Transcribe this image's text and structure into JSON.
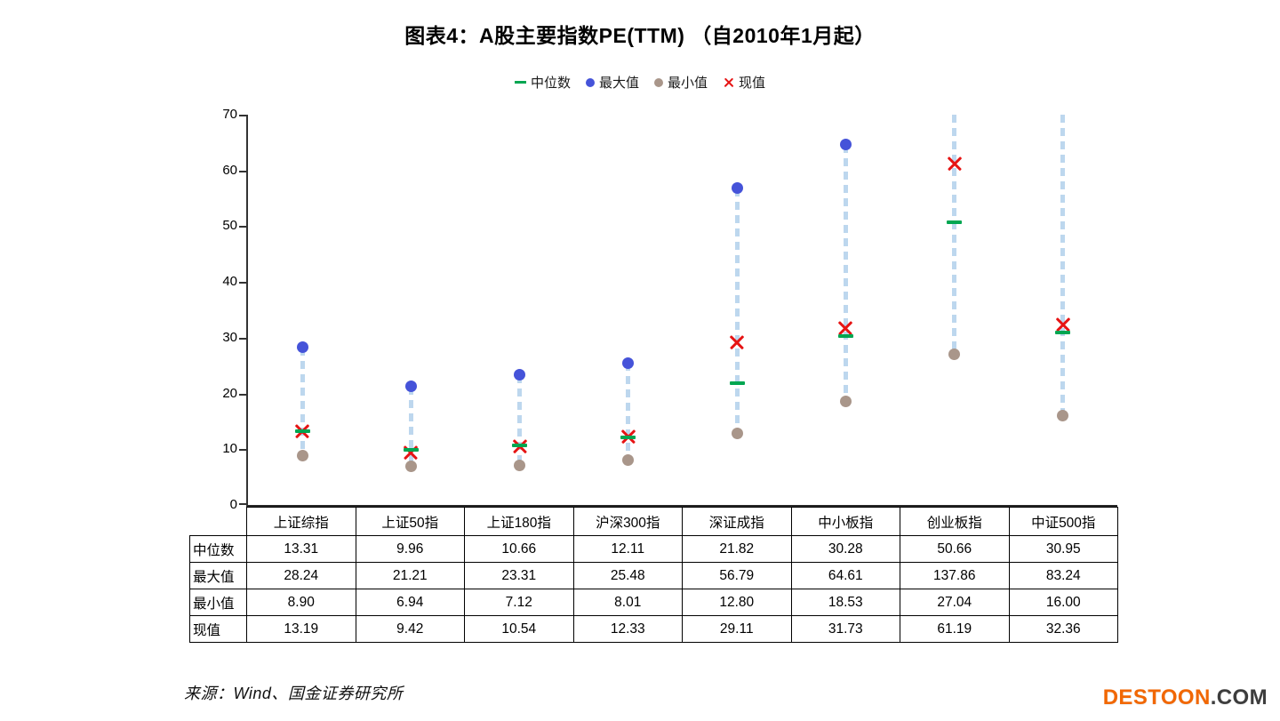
{
  "title": "图表4：A股主要指数PE(TTM) （自2010年1月起）",
  "legend": [
    {
      "role": "median",
      "label": "中位数",
      "marker": "dash",
      "color": "#00A651"
    },
    {
      "role": "max",
      "label": "最大值",
      "marker": "dot",
      "color": "#4553D9"
    },
    {
      "role": "min",
      "label": "最小值",
      "marker": "dot",
      "color": "#A9968A"
    },
    {
      "role": "current",
      "label": "现值",
      "marker": "x",
      "color": "#E61414"
    }
  ],
  "chart_data": {
    "type": "scatter",
    "subtype": "high-low-range",
    "title": "图表4：A股主要指数PE(TTM) （自2010年1月起）",
    "categories": [
      "上证综指",
      "上证50指",
      "上证180指",
      "沪深300指",
      "深证成指",
      "中小板指",
      "创业板指",
      "中证500指"
    ],
    "series": [
      {
        "name": "中位数",
        "role": "median",
        "marker": "dash",
        "values": [
          13.31,
          9.96,
          10.66,
          12.11,
          21.82,
          30.28,
          50.66,
          30.95
        ]
      },
      {
        "name": "最大值",
        "role": "max",
        "marker": "dot",
        "values": [
          28.24,
          21.21,
          23.31,
          25.48,
          56.79,
          64.61,
          137.86,
          83.24
        ]
      },
      {
        "name": "最小值",
        "role": "min",
        "marker": "dot",
        "values": [
          8.9,
          6.94,
          7.12,
          8.01,
          12.8,
          18.53,
          27.04,
          16.0
        ]
      },
      {
        "name": "现值",
        "role": "current",
        "marker": "x",
        "values": [
          13.19,
          9.42,
          10.54,
          12.33,
          29.11,
          31.73,
          61.19,
          32.36
        ]
      }
    ],
    "ylim": [
      0,
      70
    ],
    "yticks": [
      0,
      10,
      20,
      30,
      40,
      50,
      60,
      70
    ],
    "grid": false,
    "legend_position": "top",
    "range_line_color": "#BDD7EE",
    "axis_color": "#333333",
    "note": "最大值超出70的（创业板指137.86、中证500指83.24）虚线被裁切于图顶，不显示蓝色圆点"
  },
  "table": {
    "corner_label": "",
    "columns": [
      "上证综指",
      "上证50指",
      "上证180指",
      "沪深300指",
      "深证成指",
      "中小板指",
      "创业板指",
      "中证500指"
    ],
    "rows": [
      {
        "label": "中位数",
        "values": [
          "13.31",
          "9.96",
          "10.66",
          "12.11",
          "21.82",
          "30.28",
          "50.66",
          "30.95"
        ]
      },
      {
        "label": "最大值",
        "values": [
          "28.24",
          "21.21",
          "23.31",
          "25.48",
          "56.79",
          "64.61",
          "137.86",
          "83.24"
        ]
      },
      {
        "label": "最小值",
        "values": [
          "8.90",
          "6.94",
          "7.12",
          "8.01",
          "12.80",
          "18.53",
          "27.04",
          "16.00"
        ]
      },
      {
        "label": "现值",
        "values": [
          "13.19",
          "9.42",
          "10.54",
          "12.33",
          "29.11",
          "31.73",
          "61.19",
          "32.36"
        ]
      }
    ]
  },
  "source": "来源：Wind、国金证券研究所",
  "watermark": {
    "brand": "DESTOON",
    "suffix": ".COM",
    "brand_color": "#F16703",
    "suffix_color": "#3D3D3D"
  }
}
